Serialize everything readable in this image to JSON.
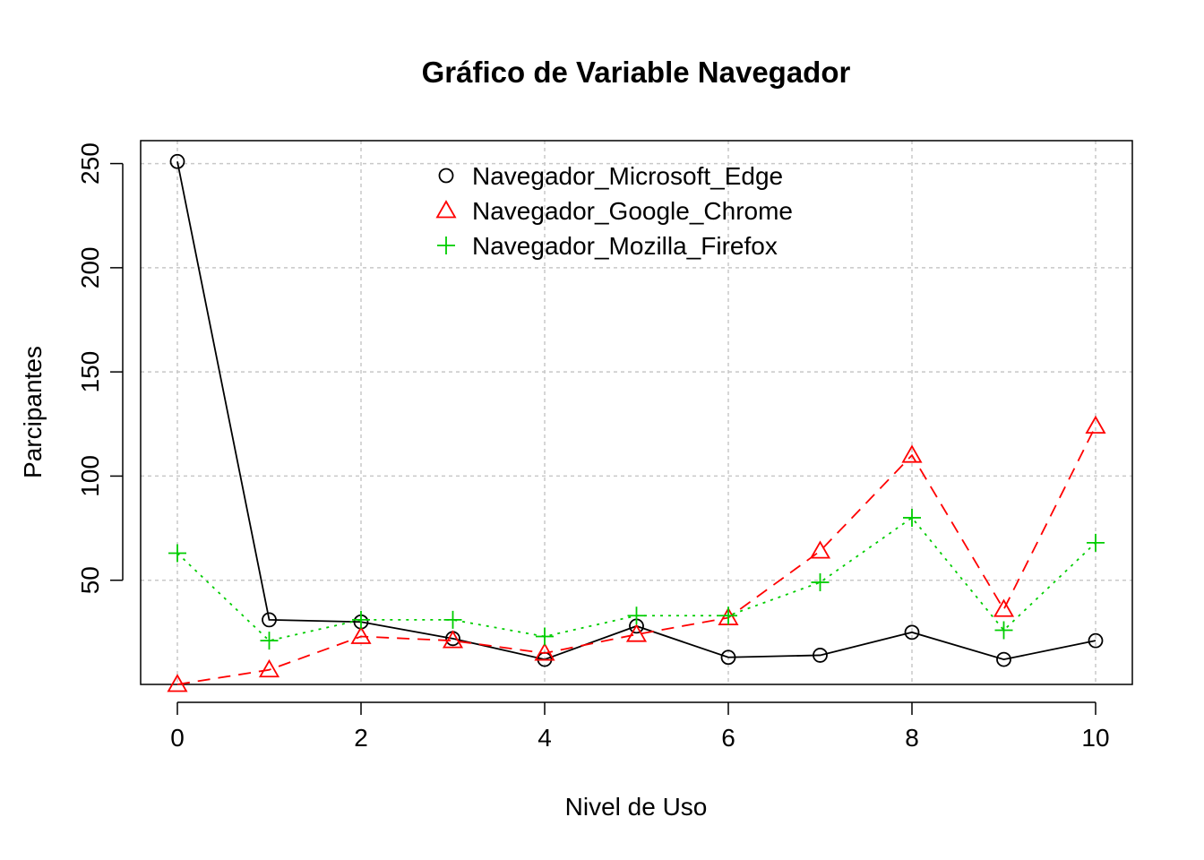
{
  "chart_data": {
    "type": "line",
    "title": "Gráfico de Variable Navegador",
    "xlabel": "Nivel de Uso",
    "ylabel": "Parcipantes",
    "x": [
      0,
      1,
      2,
      3,
      4,
      5,
      6,
      7,
      8,
      9,
      10
    ],
    "xlim": [
      -0.4,
      10.4
    ],
    "ylim": [
      0,
      261
    ],
    "xticks": [
      0,
      2,
      4,
      6,
      8,
      10
    ],
    "xtick_labels": [
      "0",
      "2",
      "4",
      "6",
      "8",
      "10"
    ],
    "yticks": [
      50,
      100,
      150,
      200,
      250
    ],
    "ytick_labels": [
      "50",
      "100",
      "150",
      "200",
      "250"
    ],
    "grid": true,
    "legend_position": "top-center",
    "series": [
      {
        "name": "Navegador_Microsoft_Edge",
        "color": "#000000",
        "marker": "circle",
        "line_style": "solid",
        "values": [
          251,
          31,
          30,
          22,
          12,
          28,
          13,
          14,
          25,
          12,
          21
        ]
      },
      {
        "name": "Navegador_Google_Chrome",
        "color": "#ff0000",
        "marker": "triangle",
        "line_style": "dashed",
        "values": [
          0,
          7,
          23,
          21,
          15,
          24,
          32,
          64,
          110,
          36,
          124
        ]
      },
      {
        "name": "Navegador_Mozilla_Firefox",
        "color": "#00cd00",
        "marker": "plus",
        "line_style": "dotted",
        "values": [
          63,
          21,
          31,
          31,
          23,
          33,
          33,
          49,
          80,
          26,
          68
        ]
      }
    ]
  }
}
